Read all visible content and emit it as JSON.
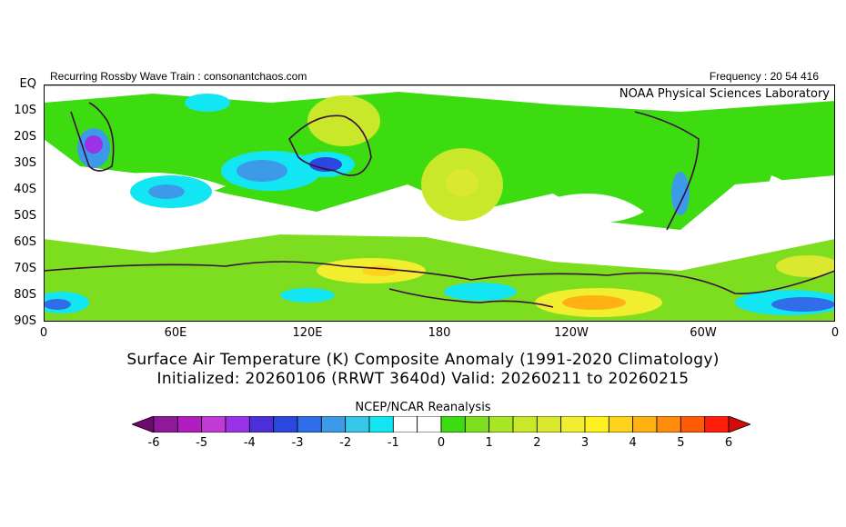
{
  "header": {
    "left": "Recurring Rossby Wave Train : consonantchaos.com",
    "right": "Frequency : 20 54 416",
    "lab": "NOAA Physical Sciences Laboratory"
  },
  "lat_labels": [
    "EQ",
    "10S",
    "20S",
    "30S",
    "40S",
    "50S",
    "60S",
    "70S",
    "80S",
    "90S"
  ],
  "lon_labels": [
    "0",
    "60E",
    "120E",
    "180",
    "120W",
    "60W",
    "0"
  ],
  "titles": {
    "line1": "Surface Air Temperature (K) Composite Anomaly (1991-2020 Climatology)",
    "line2": "Initialized: 20260106 (RRWT 3640d) Valid: 20260211 to 20260215"
  },
  "colorbar": {
    "title": "NCEP/NCAR Reanalysis",
    "ticks": [
      "-6",
      "-5",
      "-4",
      "-3",
      "-2",
      "-1",
      "0",
      "1",
      "2",
      "3",
      "4",
      "5",
      "6"
    ],
    "colors": [
      "#6e0a6e",
      "#8f1a99",
      "#b01ec0",
      "#c23ad6",
      "#9a33e8",
      "#4c2fd8",
      "#2a47e0",
      "#2f6ee8",
      "#3c9ae8",
      "#35c8e8",
      "#12e6f2",
      "#ffffff",
      "#ffffff",
      "#3ddc10",
      "#7cde1e",
      "#a8e626",
      "#c9e82a",
      "#dbe830",
      "#f0ee2e",
      "#fff020",
      "#ffd21c",
      "#ffb114",
      "#ff8c0c",
      "#ff5a08",
      "#ff1c0a",
      "#d50a0a"
    ]
  }
}
